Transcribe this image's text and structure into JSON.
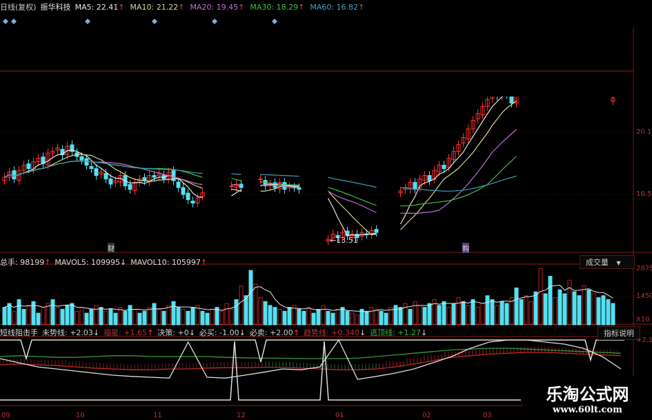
{
  "header": {
    "period": "日线(复权)",
    "stock_name": "振华科技",
    "ma": [
      {
        "label": "MA5:",
        "value": "22.41",
        "dir": "↑",
        "color": "#e8e8e8"
      },
      {
        "label": "MA10:",
        "value": "21.22",
        "dir": "↑",
        "color": "#d8d890"
      },
      {
        "label": "MA20:",
        "value": "19.45",
        "dir": "↑",
        "color": "#c070d0"
      },
      {
        "label": "MA30:",
        "value": "18.29",
        "dir": "↑",
        "color": "#40c040"
      },
      {
        "label": "MA60:",
        "value": "16.82",
        "dir": "↑",
        "color": "#40a0c0"
      }
    ]
  },
  "price_axis": [
    "20.1",
    "16.5"
  ],
  "annotations": {
    "low_price": "←13.51",
    "mark_a": "财",
    "mark_b": "购"
  },
  "volume_header": [
    {
      "label": "总手:",
      "value": "98199",
      "dir": "↑"
    },
    {
      "label": "MAVOL5:",
      "value": "109995",
      "dir": "↓"
    },
    {
      "label": "MAVOL10:",
      "value": "105997",
      "dir": "↑"
    }
  ],
  "volume_selector": {
    "label": "成交量",
    "icon": "dropdown-arrow-icon"
  },
  "volume_axis": [
    "2875",
    "1450",
    "X10"
  ],
  "indicator_header": {
    "name": "短线阻击手",
    "items": [
      {
        "label": "未势线:",
        "value": "+2.03",
        "dir": "↓",
        "color": "#d0d0d0"
      },
      {
        "label": "福星:",
        "value": "+1.65",
        "dir": "↑",
        "color": "#c03030"
      },
      {
        "label": "决策:",
        "value": "+0",
        "dir": "↓",
        "color": "#d0d0d0"
      },
      {
        "label": "必买:",
        "value": "-1.00",
        "dir": "↓",
        "color": "#d0d0d0"
      },
      {
        "label": "必卖:",
        "value": "+2.00",
        "dir": "↑",
        "color": "#d0d0d0"
      },
      {
        "label": "趋势线:",
        "value": "+0.340",
        "dir": "↓",
        "color": "#c03030"
      },
      {
        "label": "逃顶线:",
        "value": "+1.27",
        "dir": "↓",
        "color": "#40b040"
      }
    ]
  },
  "indicator_button": "指标说明",
  "indicator_axis": [
    "+2.1"
  ],
  "date_axis": [
    "09",
    "10",
    "11",
    "12",
    "01",
    "02",
    "03"
  ],
  "watermark": {
    "title": "乐淘公式网",
    "url": "www.60lt.com"
  },
  "colors": {
    "up": "#ff3030",
    "down": "#54e0f0",
    "axis": "#8a1a1a"
  },
  "chart_data": {
    "type": "candlestick",
    "closes": [
      17.5,
      17.8,
      17.4,
      17.9,
      18.2,
      18.0,
      18.4,
      18.6,
      18.3,
      18.9,
      19.0,
      19.2,
      18.8,
      19.3,
      19.0,
      18.7,
      18.5,
      18.2,
      18.0,
      17.6,
      17.8,
      17.4,
      17.1,
      17.3,
      17.6,
      17.0,
      16.8,
      17.2,
      17.4,
      17.3,
      17.6,
      17.5,
      17.7,
      17.4,
      17.8,
      17.3,
      16.9,
      16.5,
      16.2,
      16.0,
      16.3,
      16.6,
      null,
      null,
      null,
      null,
      null,
      17.0,
      17.1,
      16.9,
      null,
      null,
      null,
      17.4,
      17.0,
      17.1,
      16.9,
      17.2,
      16.8,
      17.0,
      16.9,
      16.8,
      null,
      null,
      null,
      null,
      null,
      13.9,
      14.2,
      14.0,
      14.3,
      14.1,
      14.2,
      14.0,
      14.3,
      14.2,
      14.4,
      14.3,
      null,
      null,
      null,
      null,
      16.7,
      16.9,
      17.2,
      16.8,
      17.4,
      17.6,
      17.3,
      17.9,
      18.2,
      18.0,
      18.6,
      19.0,
      19.4,
      19.8,
      20.3,
      20.8,
      21.2,
      21.6,
      22.0,
      22.4,
      22.2,
      22.6,
      22.3,
      21.8,
      22.4,
      null,
      null,
      null,
      null,
      null,
      null,
      null,
      null,
      null,
      null,
      null,
      null,
      null,
      null,
      null,
      null,
      null,
      null,
      null,
      22.1
    ],
    "volumes": [
      900,
      1100,
      700,
      1300,
      800,
      1000,
      1200,
      600,
      900,
      1100,
      1300,
      900,
      800,
      1000,
      1100,
      700,
      900,
      600,
      800,
      1000,
      900,
      700,
      800,
      600,
      900,
      700,
      1000,
      800,
      600,
      700,
      900,
      1100,
      800,
      700,
      1000,
      1200,
      900,
      800,
      700,
      900,
      1000,
      700,
      600,
      800,
      900,
      700,
      1100,
      800,
      1300,
      2000,
      1500,
      2800,
      2100,
      1400,
      1200,
      1000,
      900,
      800,
      700,
      900,
      1000,
      800,
      700,
      900,
      600,
      800,
      1000,
      700,
      600,
      800,
      900,
      700,
      600,
      500,
      800,
      700,
      900,
      800,
      700,
      600,
      900,
      1000,
      900,
      1100,
      800,
      1200,
      1000,
      900,
      1100,
      1300,
      1000,
      1200,
      900,
      1100,
      1400,
      1200,
      1000,
      1300,
      900,
      1100,
      1500,
      1300,
      1000,
      1200,
      1100,
      1400,
      1900,
      1300,
      1500,
      1200,
      1700,
      2900,
      1600,
      2500,
      1400,
      1800,
      1600,
      2300,
      1700,
      1500,
      2000,
      1800,
      1600,
      1400,
      1500,
      1300,
      1100
    ],
    "volume_up": "dduddudduududdduuddududdudduddudududduddudduduuududduudddudduddudduddudduudduuddudduduudduddudududuudduddudduududdudduddudud",
    "volume_ylim": [
      0,
      2875
    ],
    "indicator": {
      "white": [
        55,
        45,
        35,
        30,
        25,
        20,
        15,
        12,
        10,
        8,
        95,
        10,
        8,
        15,
        22,
        30,
        28,
        35,
        100,
        5,
        12,
        20,
        30,
        45,
        60,
        80,
        95,
        100,
        100,
        95,
        90,
        80,
        60,
        30
      ],
      "red": [
        40,
        42,
        40,
        38,
        35,
        32,
        30,
        28,
        28,
        30,
        30,
        32,
        33,
        33,
        34,
        34,
        32,
        30,
        28,
        28,
        30,
        35,
        42,
        50,
        58,
        62,
        66,
        68,
        70,
        70,
        68,
        66,
        64,
        62
      ],
      "green": [
        60,
        62,
        60,
        58,
        58,
        60,
        62,
        62,
        60,
        60,
        60,
        60,
        58,
        57,
        56,
        56,
        55,
        55,
        55,
        56,
        60,
        64,
        68,
        72,
        76,
        78,
        80,
        80,
        78,
        76,
        74,
        72,
        70,
        68
      ]
    }
  }
}
